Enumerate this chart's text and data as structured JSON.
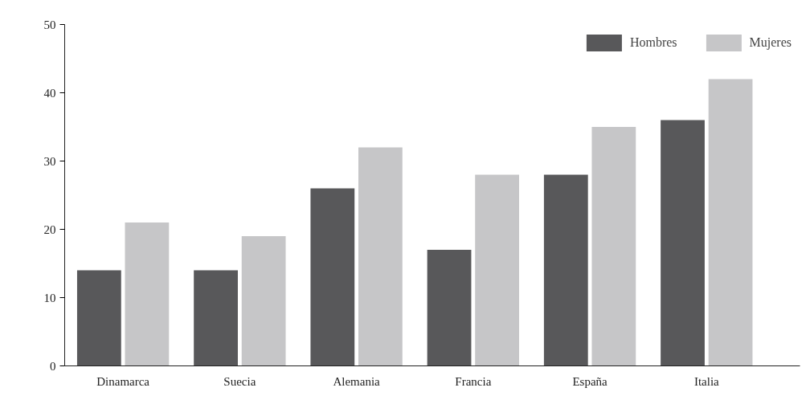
{
  "chart_data": {
    "type": "bar",
    "categories": [
      "Dinamarca",
      "Suecia",
      "Alemania",
      "Francia",
      "España",
      "Italia"
    ],
    "series": [
      {
        "name": "Hombres",
        "color": "#58585a",
        "values": [
          14,
          14,
          26,
          17,
          28,
          36
        ]
      },
      {
        "name": "Mujeres",
        "color": "#c6c6c8",
        "values": [
          21,
          19,
          32,
          28,
          35,
          42
        ]
      }
    ],
    "ylim": [
      0,
      50
    ],
    "yticks": [
      0,
      10,
      20,
      30,
      40,
      50
    ],
    "grid": false,
    "legend": "top right"
  }
}
